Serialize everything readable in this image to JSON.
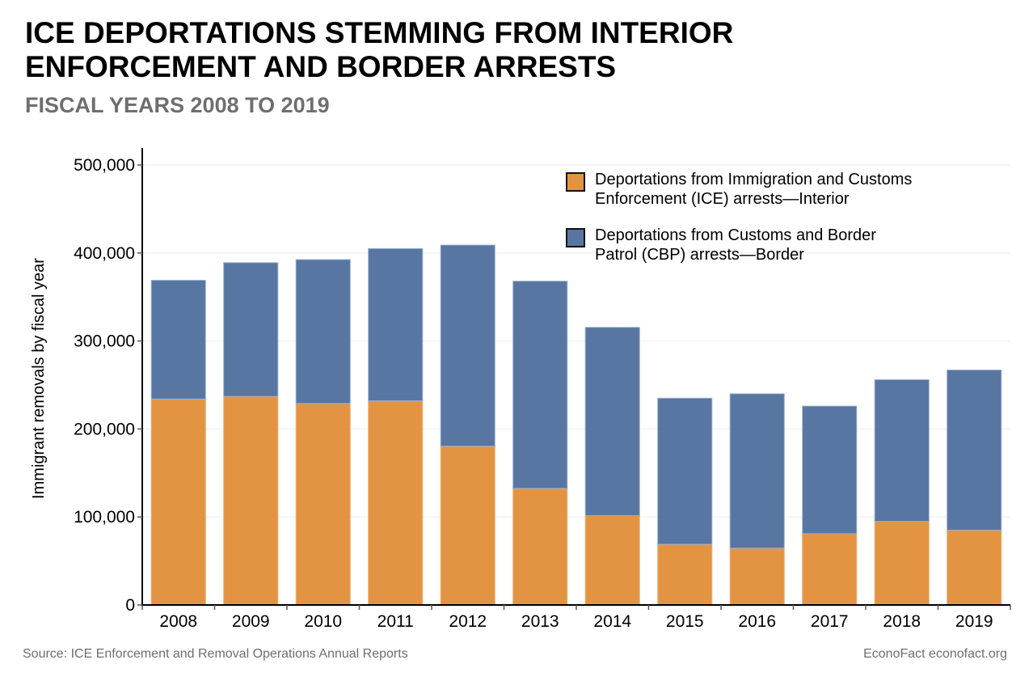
{
  "header": {
    "title_line1": "ICE DEPORTATIONS STEMMING FROM INTERIOR",
    "title_line2": "ENFORCEMENT AND BORDER ARRESTS",
    "subtitle": "FISCAL YEARS 2008 TO 2019"
  },
  "footer": {
    "source": "Source: ICE Enforcement and Removal Operations Annual Reports",
    "credit": "EconoFact  econofact.org"
  },
  "chart_data": {
    "type": "bar",
    "stacked": true,
    "title": "ICE Deportations Stemming from Interior Enforcement and Border Arrests",
    "subtitle": "Fiscal Years 2008 to 2019",
    "xlabel": "",
    "ylabel": "Immigrant removals by fiscal year",
    "categories": [
      "2008",
      "2009",
      "2010",
      "2011",
      "2012",
      "2013",
      "2014",
      "2015",
      "2016",
      "2017",
      "2018",
      "2019"
    ],
    "series": [
      {
        "name": "Deportations from Immigration and Customs Enforcement (ICE) arrests—Interior",
        "legend_lines": [
          "Deportations from Immigration and Customs",
          "Enforcement (ICE) arrests—Interior"
        ],
        "color": "#e39442",
        "values": [
          234000,
          237000,
          229000,
          232000,
          180500,
          132500,
          101500,
          69000,
          64500,
          81000,
          95000,
          85000
        ]
      },
      {
        "name": "Deportations from Customs and Border Patrol (CBP) arrests—Border",
        "legend_lines": [
          "Deportations from Customs and Border",
          "Patrol (CBP) arrests—Border"
        ],
        "color": "#5776a2",
        "values": [
          135000,
          152000,
          163500,
          173000,
          228500,
          235500,
          214000,
          166000,
          175500,
          145000,
          161000,
          182000
        ]
      }
    ],
    "ylim": [
      0,
      500000
    ],
    "yticks": [
      0,
      100000,
      200000,
      300000,
      400000,
      500000
    ],
    "ytick_labels": [
      "0",
      "100,000",
      "200,000",
      "300,000",
      "400,000",
      "500,000"
    ],
    "grid": true,
    "legend_position": "top-right"
  }
}
